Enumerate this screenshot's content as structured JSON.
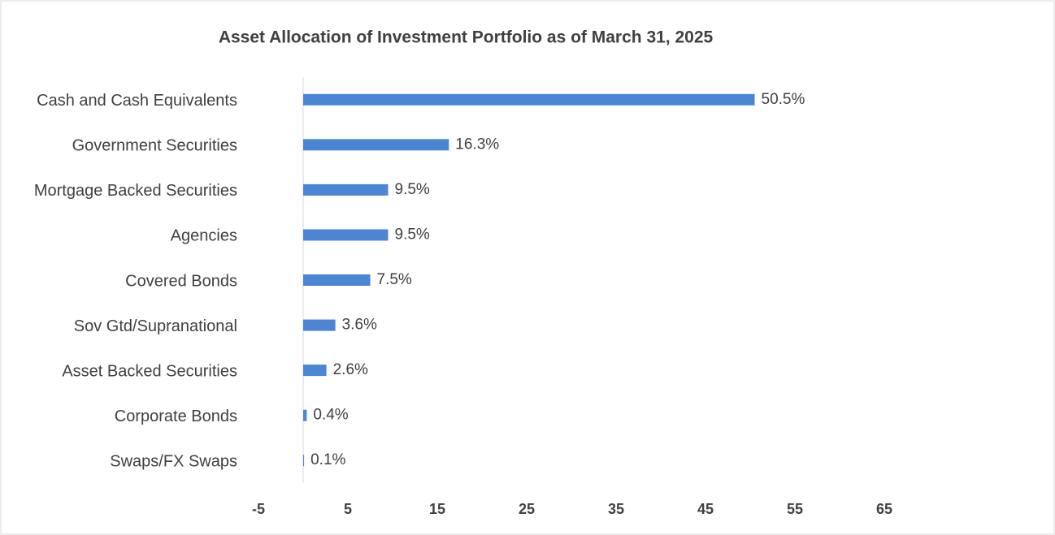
{
  "chart_data": {
    "type": "barh",
    "title": "Asset Allocation of Investment Portfolio as of March 31, 2025",
    "categories": [
      "Cash and Cash Equivalents",
      "Government Securities",
      "Mortgage Backed Securities",
      "Agencies",
      "Covered Bonds",
      "Sov Gtd/Supranational",
      "Asset Backed Securities",
      "Corporate Bonds",
      "Swaps/FX Swaps"
    ],
    "values": [
      50.5,
      16.3,
      9.5,
      9.5,
      7.5,
      3.6,
      2.6,
      0.4,
      0.1
    ],
    "value_labels": [
      "50.5%",
      "16.3%",
      "9.5%",
      "9.5%",
      "7.5%",
      "3.6%",
      "2.6%",
      "0.4%",
      "0.1%"
    ],
    "color": "#4a86d4",
    "xlim": [
      -5,
      65
    ],
    "xticks": [
      -5,
      5,
      15,
      25,
      35,
      45,
      55,
      65
    ],
    "grid": false
  }
}
